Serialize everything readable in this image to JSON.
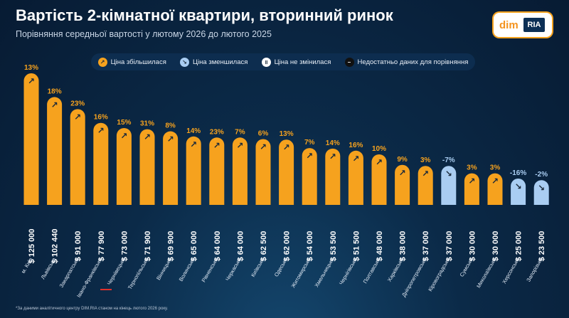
{
  "header": {
    "title": "Вартість 2-кімнатної квартири, вторинний ринок",
    "subtitle": "Порівняння середньої вартості у лютому 2026 до лютого 2025"
  },
  "logo": {
    "dim": "dim",
    "ria": "RIA"
  },
  "legend": [
    {
      "label": "Ціна збільшилася",
      "color": "#f6a21e",
      "icon": "arrow-up-right-icon"
    },
    {
      "label": "Ціна зменшилася",
      "color": "#a9cdf2",
      "icon": "arrow-down-right-icon"
    },
    {
      "label": "Ціна не змінилася",
      "color": "#ffffff",
      "icon": "pause-icon"
    },
    {
      "label": "Недостатньо даних для порівняння",
      "color": "#111111",
      "icon": "minus-icon"
    }
  ],
  "footnote": "*За даними аналітичного центру DIM.RIA станом на кінець лютого 2026 року.",
  "colors": {
    "up": "#f6a21e",
    "down": "#a9cdf2",
    "background": "#0b2a48"
  },
  "chart_data": {
    "type": "bar",
    "title": "Вартість 2-кімнатної квартири, вторинний ринок",
    "subtitle": "Порівняння середньої вартості у лютому 2026 до лютого 2025",
    "categories": [
      "м. Київ",
      "Львівська",
      "Закарпатська",
      "Івано-Франківська",
      "Чернівецька",
      "Тернопільська",
      "Вінницька",
      "Волинська",
      "Рівненська",
      "Черкаська",
      "Київська",
      "Одеська",
      "Житомирська",
      "Хмельницька",
      "Чернігівська",
      "Полтавська",
      "Харківська",
      "Дніпропетровська",
      "Кіровоградська",
      "Сумська",
      "Миколаївська",
      "Херсонська",
      "Запорізька"
    ],
    "values": [
      125000,
      102440,
      91000,
      77900,
      73000,
      71900,
      69900,
      65000,
      64000,
      64000,
      62500,
      62000,
      54000,
      53500,
      51500,
      48000,
      38000,
      37000,
      37000,
      30000,
      30000,
      25000,
      23500
    ],
    "value_labels": [
      "$ 125 000",
      "$ 102 440",
      "$ 91 000",
      "$ 77 900",
      "$ 73 000",
      "$ 71 900",
      "$ 69 900",
      "$ 65 000",
      "$ 64 000",
      "$ 64 000",
      "$ 62 500",
      "$ 62 000",
      "$ 54 000",
      "$ 53 500",
      "$ 51 500",
      "$ 48 000",
      "$ 38 000",
      "$ 37 000",
      "$ 37 000",
      "$ 30 000",
      "$ 30 000",
      "$ 25 000",
      "$ 23 500"
    ],
    "changes": [
      "13%",
      "18%",
      "23%",
      "16%",
      "15%",
      "31%",
      "8%",
      "14%",
      "23%",
      "7%",
      "6%",
      "13%",
      "7%",
      "14%",
      "16%",
      "10%",
      "9%",
      "3%",
      "-7%",
      "3%",
      "3%",
      "-16%",
      "-2%"
    ],
    "direction": [
      "up",
      "up",
      "up",
      "up",
      "up",
      "up",
      "up",
      "up",
      "up",
      "up",
      "up",
      "up",
      "up",
      "up",
      "up",
      "up",
      "up",
      "up",
      "down",
      "up",
      "up",
      "down",
      "down"
    ],
    "ylim": [
      0,
      125000
    ],
    "grid": false,
    "legend_position": "top"
  }
}
